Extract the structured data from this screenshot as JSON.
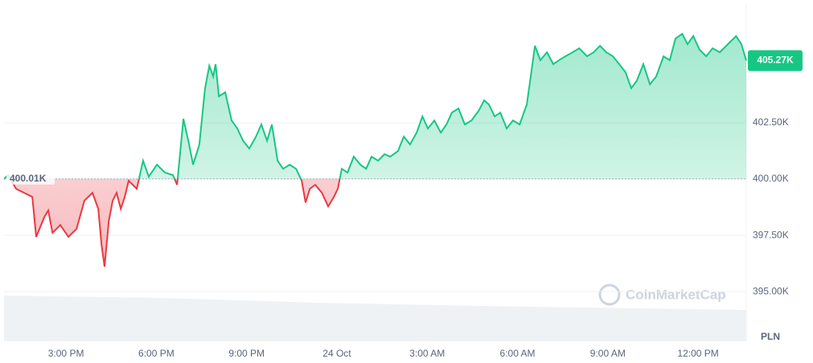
{
  "chart_data": {
    "type": "line",
    "x": [
      12.94,
      13.08,
      13.34,
      13.61,
      13.88,
      14.01,
      14.28,
      14.41,
      14.55,
      14.81,
      15.08,
      15.35,
      15.61,
      15.88,
      16.07,
      16.18,
      16.28,
      16.42,
      16.55,
      16.68,
      16.82,
      16.95,
      17.08,
      17.35,
      17.56,
      17.75,
      18.02,
      18.29,
      18.55,
      18.69,
      18.9,
      19.09,
      19.22,
      19.43,
      19.62,
      19.76,
      19.89,
      19.97,
      20.08,
      20.29,
      20.5,
      20.69,
      20.88,
      21.09,
      21.31,
      21.49,
      21.68,
      21.84,
      22.03,
      22.21,
      22.43,
      22.64,
      22.83,
      22.96,
      23.1,
      23.28,
      23.5,
      23.71,
      23.9,
      24.03,
      24.16,
      24.35,
      24.56,
      24.78,
      24.97,
      25.15,
      25.37,
      25.58,
      25.77,
      26.03,
      26.22,
      26.43,
      26.65,
      26.84,
      27.02,
      27.24,
      27.45,
      27.64,
      27.82,
      28.04,
      28.25,
      28.47,
      28.71,
      28.89,
      29.05,
      29.24,
      29.43,
      29.64,
      29.85,
      30.07,
      30.31,
      30.44,
      30.58,
      30.76,
      30.98,
      31.19,
      31.38,
      31.59,
      31.83,
      32.05,
      32.31,
      32.53,
      32.74,
      32.95,
      33.17,
      33.38,
      33.59,
      33.78,
      33.97,
      34.18,
      34.4,
      34.61,
      34.85,
      35.06,
      35.25,
      35.47,
      35.65,
      35.84,
      36.05,
      36.27,
      36.48,
      36.72,
      36.99,
      37.26,
      37.44,
      37.6
    ],
    "values": [
      400010,
      400180,
      399570,
      399390,
      399210,
      397430,
      398320,
      398610,
      397610,
      397960,
      397430,
      397790,
      399040,
      399390,
      398680,
      397070,
      396110,
      398140,
      399040,
      399390,
      398680,
      399210,
      399930,
      399570,
      400820,
      400110,
      400640,
      400290,
      400180,
      399750,
      402680,
      401540,
      400640,
      401540,
      404040,
      405040,
      404570,
      405110,
      403680,
      403860,
      402610,
      402250,
      401710,
      401360,
      401890,
      402430,
      401710,
      402430,
      400820,
      400460,
      400640,
      400460,
      399930,
      398960,
      399570,
      399750,
      399390,
      398790,
      399210,
      399570,
      400460,
      400290,
      401000,
      400640,
      400460,
      401000,
      400820,
      401110,
      401000,
      401250,
      401890,
      401540,
      402070,
      402790,
      402250,
      402610,
      402070,
      402430,
      402960,
      403140,
      402430,
      402610,
      403040,
      403500,
      403320,
      402790,
      402960,
      402250,
      402610,
      402430,
      403320,
      404570,
      405930,
      405290,
      405640,
      405110,
      405290,
      405460,
      405640,
      405820,
      405460,
      405640,
      405930,
      405640,
      405460,
      405110,
      404750,
      404040,
      404390,
      405110,
      404210,
      404570,
      405460,
      405290,
      406250,
      406460,
      406000,
      406360,
      405750,
      405460,
      405820,
      405640,
      406000,
      406360,
      406000,
      405270
    ],
    "up_color": "#16c784",
    "down_color": "#ea3943",
    "baseline": {
      "value": 400010,
      "label": "400.01K"
    },
    "current_price": {
      "value": 405270,
      "label": "405.27K"
    },
    "xlim": [
      12.94,
      37.6
    ],
    "xticks": [
      {
        "value": 15,
        "label": "3:00 PM"
      },
      {
        "value": 18,
        "label": "6:00 PM"
      },
      {
        "value": 21,
        "label": "9:00 PM"
      },
      {
        "value": 24,
        "label": "24 Oct"
      },
      {
        "value": 27,
        "label": "3:00 AM"
      },
      {
        "value": 30,
        "label": "6:00 AM"
      },
      {
        "value": 33,
        "label": "9:00 AM"
      },
      {
        "value": 36,
        "label": "12:00 PM"
      }
    ],
    "ylim": [
      392790,
      407500
    ],
    "yticks": [
      {
        "value": 395000,
        "label": "395.00K"
      },
      {
        "value": 397500,
        "label": "397.50K"
      },
      {
        "value": 400000,
        "label": "400.00K"
      },
      {
        "value": 402500,
        "label": "402.50K"
      }
    ],
    "grid": true,
    "currency": "PLN",
    "watermark": "CoinMarketCap"
  }
}
